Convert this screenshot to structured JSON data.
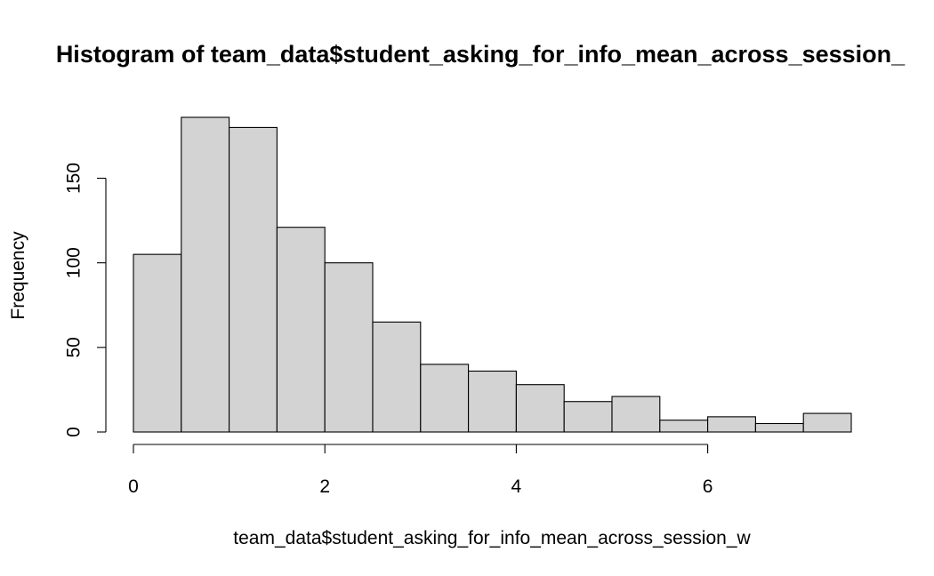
{
  "chart_data": {
    "type": "bar",
    "title": "Histogram of team_data$student_asking_for_info_mean_across_session_",
    "xlabel": "team_data$student_asking_for_info_mean_across_session_w",
    "ylabel": "Frequency",
    "bin_edges": [
      0,
      0.5,
      1,
      1.5,
      2,
      2.5,
      3,
      3.5,
      4,
      4.5,
      5,
      5.5,
      6,
      6.5,
      7,
      7.5
    ],
    "values": [
      105,
      186,
      180,
      121,
      100,
      65,
      40,
      36,
      28,
      18,
      21,
      7,
      9,
      5,
      11
    ],
    "xlim": [
      0,
      7.5
    ],
    "ylim": [
      0,
      186
    ],
    "x_ticks": [
      0,
      2,
      4,
      6
    ],
    "y_ticks": [
      0,
      50,
      100,
      150
    ],
    "grid": false,
    "legend": "none",
    "colors": {
      "bar_fill": "#d3d3d3",
      "bar_stroke": "#000000"
    }
  }
}
